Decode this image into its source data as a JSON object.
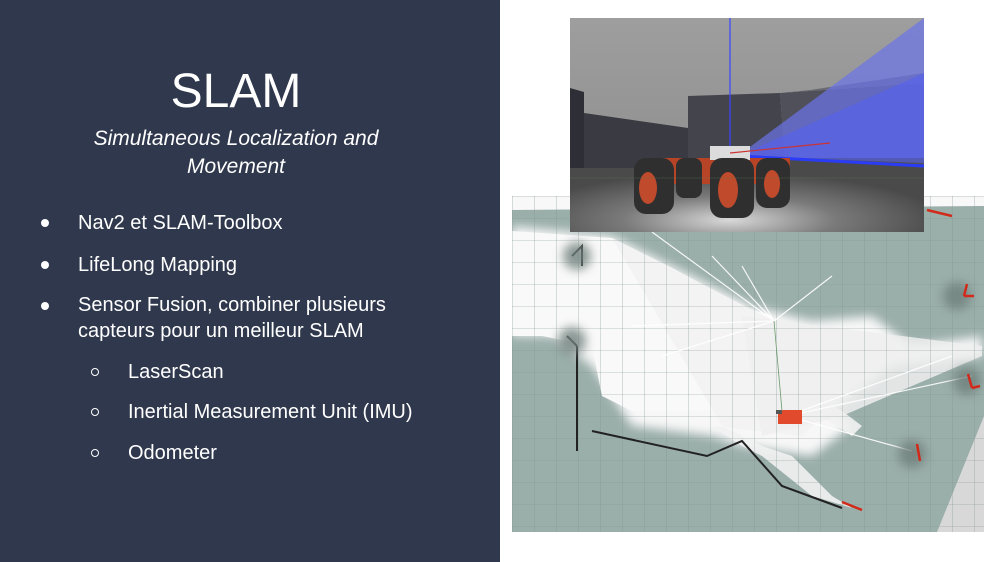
{
  "slide": {
    "title": "SLAM",
    "subtitle": "Simultaneous Localization and Movement",
    "bullets": [
      "Nav2 et SLAM-Toolbox",
      "LifeLong Mapping",
      "Sensor Fusion, combiner plusieurs capteurs pour un meilleur SLAM"
    ],
    "sub_bullets": [
      "LaserScan",
      "Inertial Measurement Unit (IMU)",
      "Odometer"
    ]
  },
  "colors": {
    "panel": "#2f384c",
    "text": "#ffffff",
    "map_unknown": "#9aaeaa",
    "map_free": "#f6f6f6",
    "robot": "#e24a2e",
    "laser": "#4f5bf0"
  },
  "images": {
    "occupancy_map": "slam-occupancy-grid-map",
    "simulation_view": "gazebo-robot-3d-view"
  }
}
